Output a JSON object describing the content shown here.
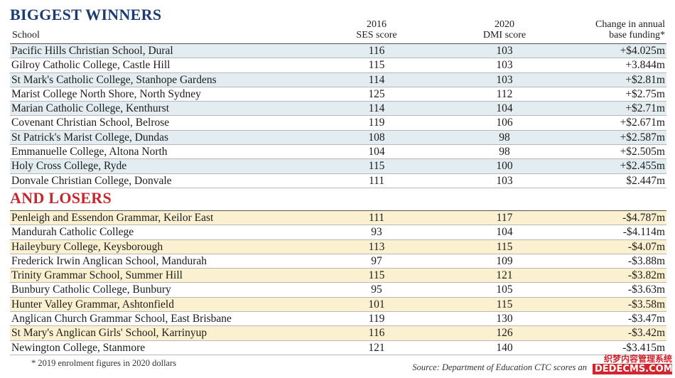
{
  "headings": {
    "winners": "BIGGEST WINNERS",
    "losers": "AND LOSERS"
  },
  "columns": {
    "school": "School",
    "ses_line1": "2016",
    "ses_line2": "SES score",
    "dmi_line1": "2020",
    "dmi_line2": "DMI score",
    "change_line1": "Change in annual",
    "change_line2": "base funding*"
  },
  "winners": [
    {
      "school": "Pacific Hills Christian School, Dural",
      "ses": "116",
      "dmi": "103",
      "change": "+$4.025m"
    },
    {
      "school": "Gilroy Catholic College, Castle Hill",
      "ses": "115",
      "dmi": "103",
      "change": "+3.844m"
    },
    {
      "school": "St Mark's Catholic College, Stanhope Gardens",
      "ses": "114",
      "dmi": "103",
      "change": "+$2.81m"
    },
    {
      "school": "Marist College North Shore, North Sydney",
      "ses": "125",
      "dmi": "112",
      "change": "+$2.75m"
    },
    {
      "school": "Marian Catholic College, Kenthurst",
      "ses": "114",
      "dmi": "104",
      "change": "+$2.71m"
    },
    {
      "school": "Covenant Christian School, Belrose",
      "ses": "119",
      "dmi": "106",
      "change": "+$2.671m"
    },
    {
      "school": "St Patrick's Marist College, Dundas",
      "ses": "108",
      "dmi": "98",
      "change": "+$2.587m"
    },
    {
      "school": "Emmanuelle College, Altona North",
      "ses": "104",
      "dmi": "98",
      "change": "+$2.505m"
    },
    {
      "school": "Holy Cross College, Ryde",
      "ses": "115",
      "dmi": "100",
      "change": "+$2.455m"
    },
    {
      "school": "Donvale Christian College, Donvale",
      "ses": "111",
      "dmi": "103",
      "change": "$2.447m"
    }
  ],
  "losers": [
    {
      "school": "Penleigh and Essendon Grammar, Keilor East",
      "ses": "111",
      "dmi": "117",
      "change": "-$4.787m"
    },
    {
      "school": "Mandurah Catholic College",
      "ses": "93",
      "dmi": "104",
      "change": "-$4.114m"
    },
    {
      "school": "Haileybury College, Keysborough",
      "ses": "113",
      "dmi": "115",
      "change": "-$4.07m"
    },
    {
      "school": "Frederick Irwin Anglican School, Mandurah",
      "ses": "97",
      "dmi": "109",
      "change": "-$3.88m"
    },
    {
      "school": "Trinity Grammar School, Summer Hill",
      "ses": "115",
      "dmi": "121",
      "change": "-$3.82m"
    },
    {
      "school": "Bunbury Catholic College, Bunbury",
      "ses": "95",
      "dmi": "105",
      "change": "-$3.63m"
    },
    {
      "school": "Hunter Valley Grammar, Ashtonfield",
      "ses": "101",
      "dmi": "115",
      "change": "-$3.58m"
    },
    {
      "school": "Anglican Church Grammar School, East Brisbane",
      "ses": "119",
      "dmi": "130",
      "change": "-$3.47m"
    },
    {
      "school": "St Mary's Anglican Girls' School, Karrinyup",
      "ses": "116",
      "dmi": "126",
      "change": "-$3.42m"
    },
    {
      "school": "Newington College, Stanmore",
      "ses": "121",
      "dmi": "140",
      "change": "-$3.415m"
    }
  ],
  "footnote": "* 2019 enrolment figures in 2020 dollars",
  "source": "Source: Department of Education CTC scores an",
  "watermark": {
    "line1": "织梦内容管理系统",
    "line2": "DEDECMS.COM"
  },
  "colors": {
    "winners_heading": "#1b3b73",
    "losers_heading": "#c8252c",
    "winners_band": "#e3edf1",
    "losers_band": "#fbf0cf"
  }
}
